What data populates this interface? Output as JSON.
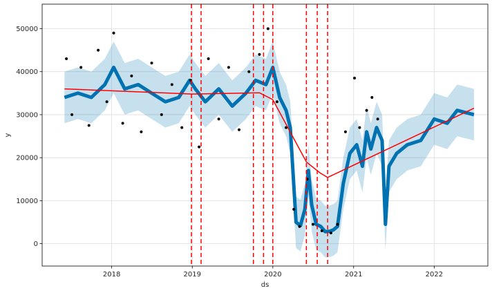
{
  "chart_data": {
    "type": "line",
    "title": "",
    "xlabel": "ds",
    "ylabel": "y",
    "x_range": [
      "2017-02-20",
      "2022-09-01"
    ],
    "ylim": [
      -5200,
      55700
    ],
    "x_ticks": [
      "2018",
      "2019",
      "2020",
      "2021",
      "2022"
    ],
    "y_ticks": [
      "0",
      "10000",
      "20000",
      "30000",
      "40000",
      "50000"
    ],
    "y_tick_values": [
      0,
      10000,
      20000,
      30000,
      40000,
      50000
    ],
    "grid": true,
    "colors": {
      "observed": "#000000",
      "forecast": "#0072B2",
      "uncertainty": "#0072B2",
      "trend": "#FF0000",
      "changepoint": "#FF0000"
    },
    "series": [
      {
        "role": "trend",
        "x": [
          "2017-06-01",
          "2019-01-01",
          "2019-11-01",
          "2020-01-01",
          "2020-06-01",
          "2020-08-01",
          "2020-09-05",
          "2022-06-30"
        ],
        "values": [
          36000,
          34800,
          35100,
          33500,
          19000,
          16500,
          15400,
          31500
        ]
      },
      {
        "role": "forecast",
        "x": [
          "2017-06-01",
          "2017-08-01",
          "2017-10-01",
          "2017-12-01",
          "2018-01-10",
          "2018-03-01",
          "2018-05-01",
          "2018-07-01",
          "2018-09-01",
          "2018-11-01",
          "2018-12-20",
          "2019-01-15",
          "2019-03-01",
          "2019-05-01",
          "2019-07-01",
          "2019-09-01",
          "2019-10-15",
          "2019-12-01",
          "2020-01-01",
          "2020-02-01",
          "2020-03-01",
          "2020-03-20",
          "2020-04-15",
          "2020-05-05",
          "2020-05-25",
          "2020-06-10",
          "2020-06-25",
          "2020-07-15",
          "2020-08-05",
          "2020-08-25",
          "2020-09-15",
          "2020-10-01",
          "2020-10-20",
          "2020-11-15",
          "2020-12-15",
          "2021-01-15",
          "2021-02-10",
          "2021-03-01",
          "2021-03-20",
          "2021-04-15",
          "2021-05-10",
          "2021-05-25",
          "2021-06-10",
          "2021-07-15",
          "2021-09-01",
          "2021-11-01",
          "2022-01-01",
          "2022-03-01",
          "2022-04-15",
          "2022-06-30"
        ],
        "values": [
          34000,
          35000,
          34000,
          37000,
          41000,
          36000,
          37000,
          35000,
          33000,
          34000,
          38000,
          36000,
          33000,
          36000,
          32000,
          35000,
          38000,
          37000,
          41000,
          34000,
          31000,
          27000,
          5000,
          4200,
          8000,
          17000,
          9000,
          4500,
          4000,
          2800,
          2900,
          3200,
          4000,
          14000,
          21000,
          23000,
          18000,
          26000,
          22000,
          27000,
          24000,
          4500,
          18000,
          21000,
          23000,
          24000,
          29000,
          28000,
          31000,
          30000
        ]
      },
      {
        "role": "observed",
        "x": [
          "2017-06-10",
          "2017-07-05",
          "2017-08-15",
          "2017-09-20",
          "2017-11-01",
          "2017-12-10",
          "2018-01-10",
          "2018-02-20",
          "2018-04-01",
          "2018-05-15",
          "2018-07-01",
          "2018-08-15",
          "2018-10-01",
          "2018-11-15",
          "2018-12-25",
          "2019-02-01",
          "2019-03-15",
          "2019-05-01",
          "2019-06-15",
          "2019-08-01",
          "2019-09-15",
          "2019-11-01",
          "2019-12-10",
          "2020-01-20",
          "2020-03-01",
          "2020-04-05",
          "2020-05-01",
          "2020-06-05",
          "2020-07-01",
          "2020-08-10",
          "2020-09-20",
          "2020-10-20",
          "2020-11-25",
          "2021-01-05",
          "2021-01-28",
          "2021-03-01",
          "2021-03-25",
          "2021-04-20"
        ],
        "values": [
          43000,
          30000,
          41000,
          27500,
          45000,
          33000,
          49000,
          28000,
          39000,
          26000,
          42000,
          30000,
          37000,
          27000,
          38000,
          22500,
          43000,
          29000,
          41000,
          26500,
          40000,
          44000,
          50000,
          33000,
          27000,
          8000,
          4000,
          15000,
          4500,
          3000,
          2500,
          4500,
          26000,
          38500,
          27000,
          31000,
          34000,
          29000
        ]
      }
    ],
    "changepoints": [
      "2018-12-28",
      "2019-02-10",
      "2019-10-05",
      "2019-11-20",
      "2020-01-01",
      "2020-06-01",
      "2020-07-20",
      "2020-09-05"
    ]
  }
}
